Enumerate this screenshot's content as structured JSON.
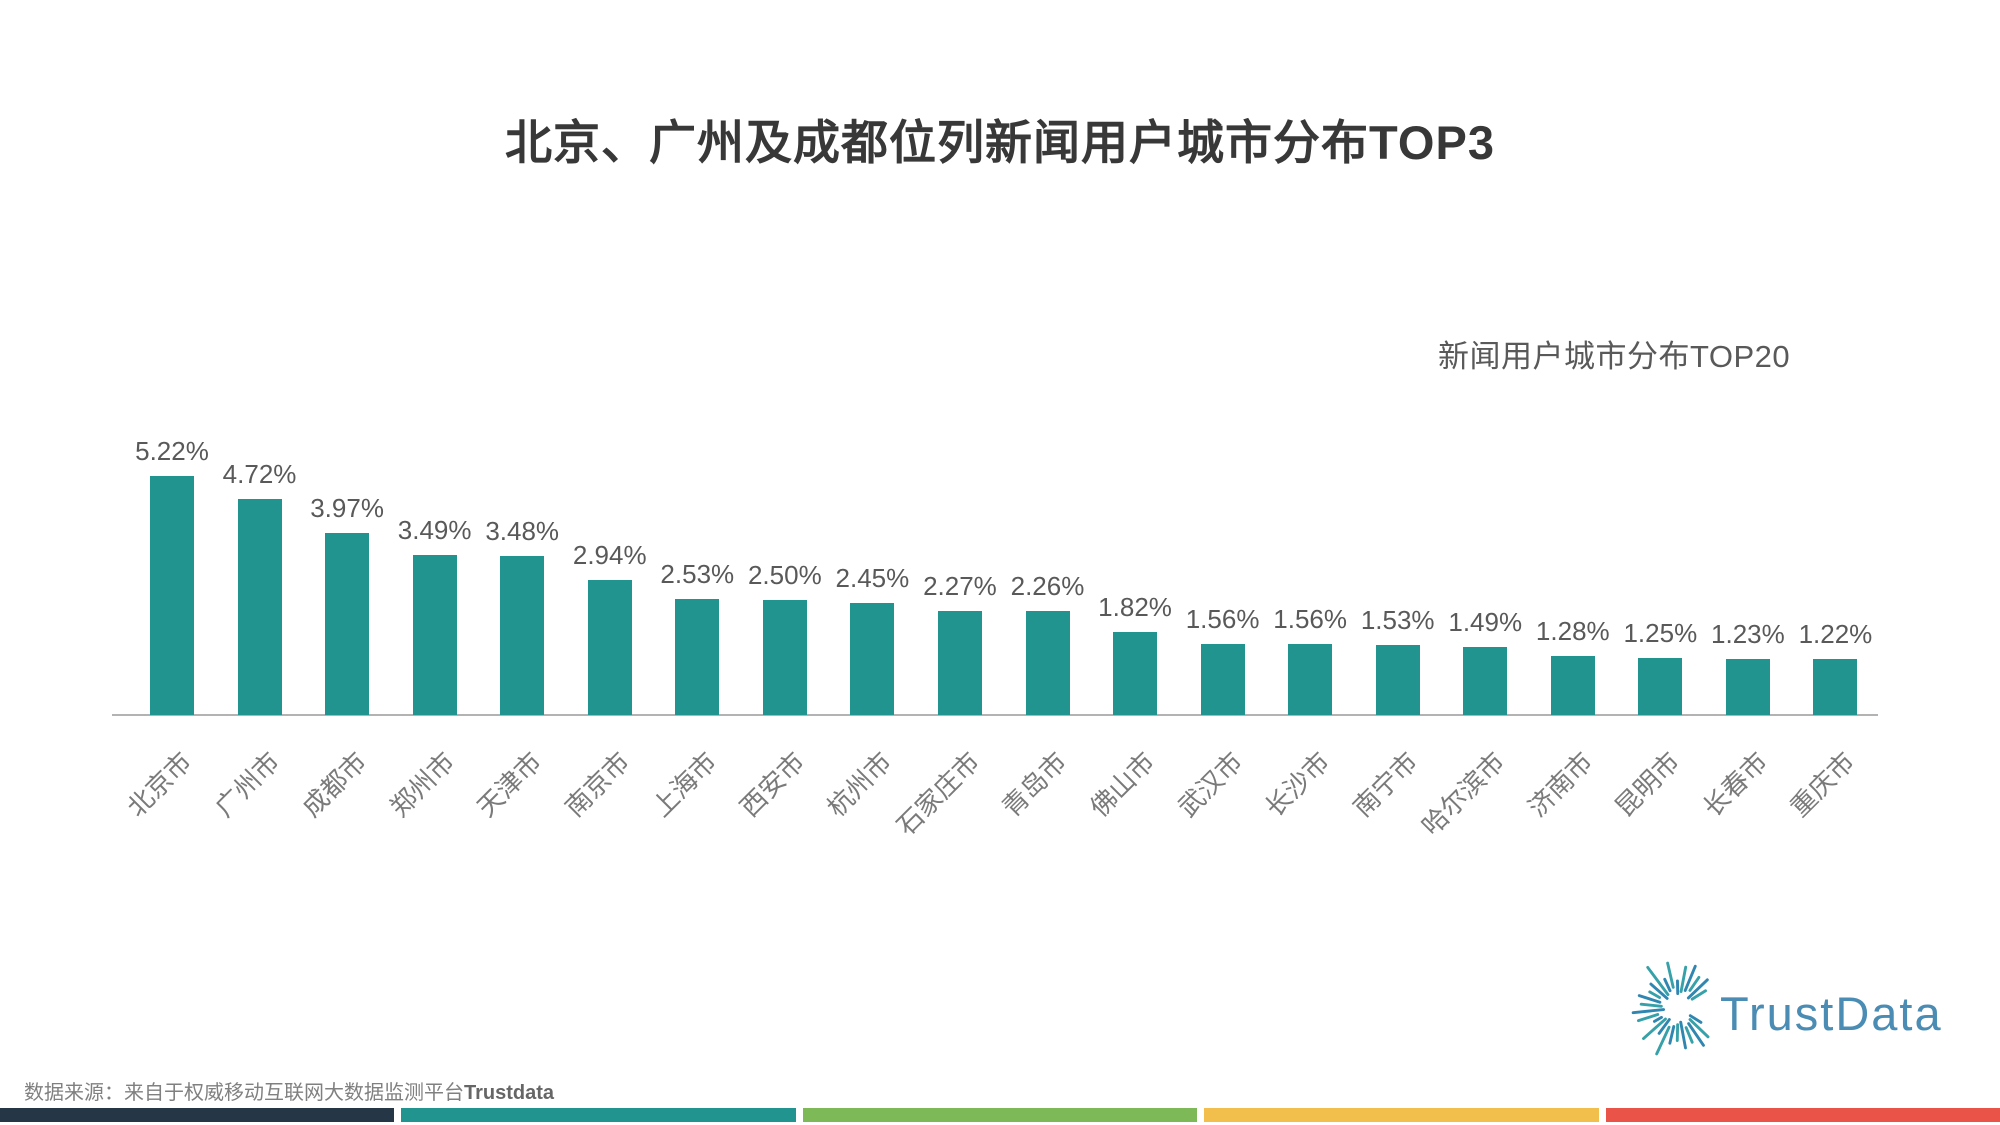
{
  "title": "北京、广州及成都位列新闻用户城市分布TOP3",
  "chart_label": "新闻用户城市分布TOP20",
  "chart_data": {
    "type": "bar",
    "title": "新闻用户城市分布TOP20",
    "categories": [
      "北京市",
      "广州市",
      "成都市",
      "郑州市",
      "天津市",
      "南京市",
      "上海市",
      "西安市",
      "杭州市",
      "石家庄市",
      "青岛市",
      "佛山市",
      "武汉市",
      "长沙市",
      "南宁市",
      "哈尔滨市",
      "济南市",
      "昆明市",
      "长春市",
      "重庆市"
    ],
    "values": [
      5.22,
      4.72,
      3.97,
      3.49,
      3.48,
      2.94,
      2.53,
      2.5,
      2.45,
      2.27,
      2.26,
      1.82,
      1.56,
      1.56,
      1.53,
      1.49,
      1.28,
      1.25,
      1.23,
      1.22
    ],
    "unit": "%",
    "xlabel": "",
    "ylabel": "",
    "ylim": [
      0,
      5.5
    ],
    "grid": false,
    "legend_position": "none",
    "bar_color": "#229490",
    "axis_color": "#B3B3B3",
    "value_label_color": "#595959",
    "category_label_color": "#7A7A7A"
  },
  "footer": {
    "source_prefix": "数据来源：来自于权威移动互联网大数据监测平台",
    "source_brand": "Trustdata"
  },
  "logo": {
    "text": "TrustData",
    "color": "#4A8CB3",
    "ray_colors": [
      "#2F86B0",
      "#36A1A8"
    ]
  },
  "footer_stripe_colors": [
    "#253746",
    "#229490",
    "#7DB957",
    "#F3BF4C",
    "#EA5348"
  ]
}
